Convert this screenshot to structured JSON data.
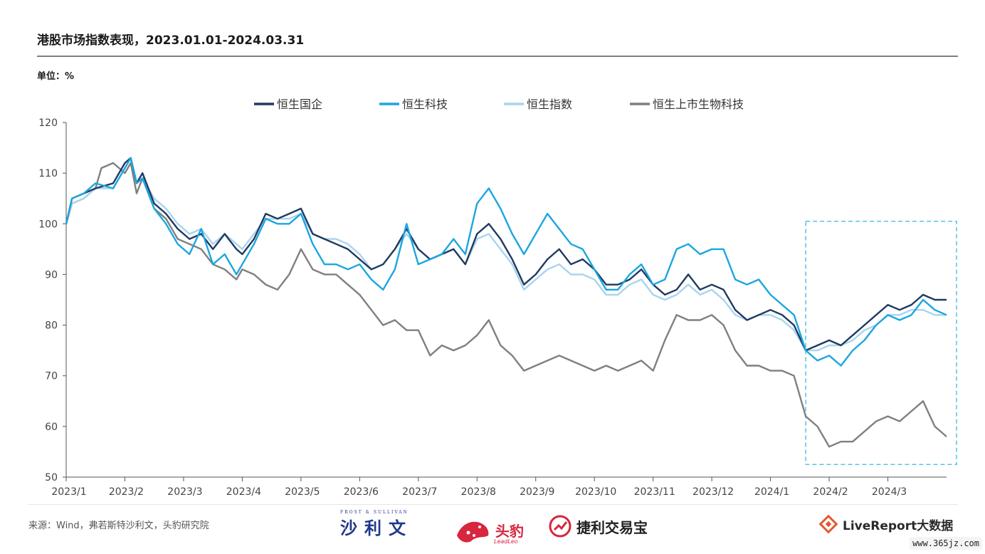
{
  "title": "港股市场指数表现，2023.01.01-2024.03.31",
  "unit_label": "单位：%",
  "source": "来源：Wind，弗若斯特沙利文，头豹研究院",
  "logos": {
    "frost": "沙利文",
    "frost_sub": "FROST & SULLIVAN",
    "leadleo": "头豹",
    "leadleo_sub": "LeadLeo",
    "jieli": "捷利交易宝",
    "livereport": "LiveReport大数据"
  },
  "watermark": "www.365jz.com",
  "colors": {
    "hscei": "#1f3a60",
    "hstech": "#1aa6e0",
    "hsi": "#a9d4ee",
    "biotech": "#7f7f7f",
    "highlight": "#3bb8e0"
  },
  "chart_data": {
    "type": "line",
    "title": "港股市场指数表现，2023.01.01-2024.03.31",
    "ylabel": "单位：%",
    "ylim": [
      50,
      120
    ],
    "yticks": [
      50,
      60,
      70,
      80,
      90,
      100,
      110,
      120
    ],
    "xlim": [
      0,
      15
    ],
    "xticks": [
      "2023/1",
      "2023/2",
      "2023/3",
      "2023/4",
      "2023/5",
      "2023/6",
      "2023/7",
      "2023/8",
      "2023/9",
      "2023/10",
      "2023/11",
      "2023/12",
      "2024/1",
      "2024/2",
      "2024/3"
    ],
    "legend_position": "top",
    "grid": false,
    "highlight_box": {
      "x_start": 12.6,
      "x_end": 15,
      "y_start": 52.5,
      "y_end": 100.5
    },
    "series": [
      {
        "name": "恒生国企",
        "color_key": "hscei",
        "points": [
          [
            0,
            100
          ],
          [
            0.1,
            105
          ],
          [
            0.3,
            106
          ],
          [
            0.5,
            107
          ],
          [
            0.8,
            108
          ],
          [
            1.0,
            112
          ],
          [
            1.1,
            113
          ],
          [
            1.2,
            108
          ],
          [
            1.3,
            110
          ],
          [
            1.5,
            104
          ],
          [
            1.7,
            102
          ],
          [
            1.9,
            99
          ],
          [
            2.1,
            97
          ],
          [
            2.3,
            98
          ],
          [
            2.5,
            95
          ],
          [
            2.7,
            98
          ],
          [
            2.9,
            95
          ],
          [
            3.0,
            94
          ],
          [
            3.2,
            97
          ],
          [
            3.4,
            102
          ],
          [
            3.6,
            101
          ],
          [
            3.8,
            102
          ],
          [
            4.0,
            103
          ],
          [
            4.2,
            98
          ],
          [
            4.4,
            97
          ],
          [
            4.6,
            96
          ],
          [
            4.8,
            95
          ],
          [
            5.0,
            93
          ],
          [
            5.2,
            91
          ],
          [
            5.4,
            92
          ],
          [
            5.6,
            95
          ],
          [
            5.8,
            99
          ],
          [
            6.0,
            95
          ],
          [
            6.2,
            93
          ],
          [
            6.4,
            94
          ],
          [
            6.6,
            95
          ],
          [
            6.8,
            92
          ],
          [
            7.0,
            98
          ],
          [
            7.2,
            100
          ],
          [
            7.4,
            97
          ],
          [
            7.6,
            93
          ],
          [
            7.8,
            88
          ],
          [
            8.0,
            90
          ],
          [
            8.2,
            93
          ],
          [
            8.4,
            95
          ],
          [
            8.6,
            92
          ],
          [
            8.8,
            93
          ],
          [
            9.0,
            91
          ],
          [
            9.2,
            88
          ],
          [
            9.4,
            88
          ],
          [
            9.6,
            89
          ],
          [
            9.8,
            91
          ],
          [
            10.0,
            88
          ],
          [
            10.2,
            86
          ],
          [
            10.4,
            87
          ],
          [
            10.6,
            90
          ],
          [
            10.8,
            87
          ],
          [
            11.0,
            88
          ],
          [
            11.2,
            87
          ],
          [
            11.4,
            83
          ],
          [
            11.6,
            81
          ],
          [
            11.8,
            82
          ],
          [
            12.0,
            83
          ],
          [
            12.2,
            82
          ],
          [
            12.4,
            80
          ],
          [
            12.6,
            75
          ],
          [
            12.8,
            76
          ],
          [
            13.0,
            77
          ],
          [
            13.2,
            76
          ],
          [
            13.4,
            78
          ],
          [
            13.6,
            80
          ],
          [
            13.8,
            82
          ],
          [
            14.0,
            84
          ],
          [
            14.2,
            83
          ],
          [
            14.4,
            84
          ],
          [
            14.6,
            86
          ],
          [
            14.8,
            85
          ],
          [
            15.0,
            85
          ]
        ]
      },
      {
        "name": "恒生科技",
        "color_key": "hstech",
        "points": [
          [
            0,
            100
          ],
          [
            0.1,
            105
          ],
          [
            0.3,
            106
          ],
          [
            0.5,
            108
          ],
          [
            0.8,
            107
          ],
          [
            1.0,
            111
          ],
          [
            1.1,
            113
          ],
          [
            1.2,
            108
          ],
          [
            1.3,
            109
          ],
          [
            1.5,
            103
          ],
          [
            1.7,
            100
          ],
          [
            1.9,
            96
          ],
          [
            2.1,
            94
          ],
          [
            2.3,
            99
          ],
          [
            2.5,
            92
          ],
          [
            2.7,
            94
          ],
          [
            2.9,
            90
          ],
          [
            3.0,
            92
          ],
          [
            3.2,
            96
          ],
          [
            3.4,
            101
          ],
          [
            3.6,
            100
          ],
          [
            3.8,
            100
          ],
          [
            4.0,
            102
          ],
          [
            4.2,
            96
          ],
          [
            4.4,
            92
          ],
          [
            4.6,
            92
          ],
          [
            4.8,
            91
          ],
          [
            5.0,
            92
          ],
          [
            5.2,
            89
          ],
          [
            5.4,
            87
          ],
          [
            5.6,
            91
          ],
          [
            5.8,
            100
          ],
          [
            6.0,
            92
          ],
          [
            6.2,
            93
          ],
          [
            6.4,
            94
          ],
          [
            6.6,
            97
          ],
          [
            6.8,
            94
          ],
          [
            7.0,
            104
          ],
          [
            7.2,
            107
          ],
          [
            7.4,
            103
          ],
          [
            7.6,
            98
          ],
          [
            7.8,
            94
          ],
          [
            8.0,
            98
          ],
          [
            8.2,
            102
          ],
          [
            8.4,
            99
          ],
          [
            8.6,
            96
          ],
          [
            8.8,
            95
          ],
          [
            9.0,
            91
          ],
          [
            9.2,
            87
          ],
          [
            9.4,
            87
          ],
          [
            9.6,
            90
          ],
          [
            9.8,
            92
          ],
          [
            10.0,
            88
          ],
          [
            10.2,
            89
          ],
          [
            10.4,
            95
          ],
          [
            10.6,
            96
          ],
          [
            10.8,
            94
          ],
          [
            11.0,
            95
          ],
          [
            11.2,
            95
          ],
          [
            11.4,
            89
          ],
          [
            11.6,
            88
          ],
          [
            11.8,
            89
          ],
          [
            12.0,
            86
          ],
          [
            12.2,
            84
          ],
          [
            12.4,
            82
          ],
          [
            12.6,
            75
          ],
          [
            12.8,
            73
          ],
          [
            13.0,
            74
          ],
          [
            13.2,
            72
          ],
          [
            13.4,
            75
          ],
          [
            13.6,
            77
          ],
          [
            13.8,
            80
          ],
          [
            14.0,
            82
          ],
          [
            14.2,
            81
          ],
          [
            14.4,
            82
          ],
          [
            14.6,
            85
          ],
          [
            14.8,
            83
          ],
          [
            15.0,
            82
          ]
        ]
      },
      {
        "name": "恒生指数",
        "color_key": "hsi",
        "points": [
          [
            0,
            100
          ],
          [
            0.1,
            104
          ],
          [
            0.3,
            105
          ],
          [
            0.5,
            107
          ],
          [
            0.8,
            107
          ],
          [
            1.0,
            111
          ],
          [
            1.1,
            113
          ],
          [
            1.2,
            108
          ],
          [
            1.3,
            109
          ],
          [
            1.5,
            105
          ],
          [
            1.7,
            103
          ],
          [
            1.9,
            100
          ],
          [
            2.1,
            98
          ],
          [
            2.3,
            99
          ],
          [
            2.5,
            96
          ],
          [
            2.7,
            98
          ],
          [
            2.9,
            96
          ],
          [
            3.0,
            95
          ],
          [
            3.2,
            98
          ],
          [
            3.4,
            101
          ],
          [
            3.6,
            101
          ],
          [
            3.8,
            101
          ],
          [
            4.0,
            102
          ],
          [
            4.2,
            98
          ],
          [
            4.4,
            97
          ],
          [
            4.6,
            97
          ],
          [
            4.8,
            96
          ],
          [
            5.0,
            94
          ],
          [
            5.2,
            91
          ],
          [
            5.4,
            92
          ],
          [
            5.6,
            95
          ],
          [
            5.8,
            98
          ],
          [
            6.0,
            95
          ],
          [
            6.2,
            93
          ],
          [
            6.4,
            94
          ],
          [
            6.6,
            95
          ],
          [
            6.8,
            92
          ],
          [
            7.0,
            97
          ],
          [
            7.2,
            98
          ],
          [
            7.4,
            95
          ],
          [
            7.6,
            92
          ],
          [
            7.8,
            87
          ],
          [
            8.0,
            89
          ],
          [
            8.2,
            91
          ],
          [
            8.4,
            92
          ],
          [
            8.6,
            90
          ],
          [
            8.8,
            90
          ],
          [
            9.0,
            89
          ],
          [
            9.2,
            86
          ],
          [
            9.4,
            86
          ],
          [
            9.6,
            88
          ],
          [
            9.8,
            89
          ],
          [
            10.0,
            86
          ],
          [
            10.2,
            85
          ],
          [
            10.4,
            86
          ],
          [
            10.6,
            88
          ],
          [
            10.8,
            86
          ],
          [
            11.0,
            87
          ],
          [
            11.2,
            85
          ],
          [
            11.4,
            82
          ],
          [
            11.6,
            81
          ],
          [
            11.8,
            82
          ],
          [
            12.0,
            82
          ],
          [
            12.2,
            81
          ],
          [
            12.4,
            79
          ],
          [
            12.6,
            75
          ],
          [
            12.8,
            75
          ],
          [
            13.0,
            76
          ],
          [
            13.2,
            76
          ],
          [
            13.4,
            77
          ],
          [
            13.6,
            79
          ],
          [
            13.8,
            80
          ],
          [
            14.0,
            82
          ],
          [
            14.2,
            82
          ],
          [
            14.4,
            83
          ],
          [
            14.6,
            83
          ],
          [
            14.8,
            82
          ],
          [
            15.0,
            82
          ]
        ]
      },
      {
        "name": "恒生上市生物科技",
        "color_key": "biotech",
        "points": [
          [
            0,
            100
          ],
          [
            0.1,
            104
          ],
          [
            0.3,
            105
          ],
          [
            0.5,
            107
          ],
          [
            0.6,
            111
          ],
          [
            0.8,
            112
          ],
          [
            1.0,
            110
          ],
          [
            1.1,
            112
          ],
          [
            1.2,
            106
          ],
          [
            1.3,
            109
          ],
          [
            1.5,
            103
          ],
          [
            1.7,
            101
          ],
          [
            1.9,
            97
          ],
          [
            2.1,
            96
          ],
          [
            2.3,
            95
          ],
          [
            2.5,
            92
          ],
          [
            2.7,
            91
          ],
          [
            2.9,
            89
          ],
          [
            3.0,
            91
          ],
          [
            3.2,
            90
          ],
          [
            3.4,
            88
          ],
          [
            3.6,
            87
          ],
          [
            3.8,
            90
          ],
          [
            4.0,
            95
          ],
          [
            4.2,
            91
          ],
          [
            4.4,
            90
          ],
          [
            4.6,
            90
          ],
          [
            4.8,
            88
          ],
          [
            5.0,
            86
          ],
          [
            5.2,
            83
          ],
          [
            5.4,
            80
          ],
          [
            5.6,
            81
          ],
          [
            5.8,
            79
          ],
          [
            6.0,
            79
          ],
          [
            6.2,
            74
          ],
          [
            6.4,
            76
          ],
          [
            6.6,
            75
          ],
          [
            6.8,
            76
          ],
          [
            7.0,
            78
          ],
          [
            7.2,
            81
          ],
          [
            7.4,
            76
          ],
          [
            7.6,
            74
          ],
          [
            7.8,
            71
          ],
          [
            8.0,
            72
          ],
          [
            8.2,
            73
          ],
          [
            8.4,
            74
          ],
          [
            8.6,
            73
          ],
          [
            8.8,
            72
          ],
          [
            9.0,
            71
          ],
          [
            9.2,
            72
          ],
          [
            9.4,
            71
          ],
          [
            9.6,
            72
          ],
          [
            9.8,
            73
          ],
          [
            10.0,
            71
          ],
          [
            10.2,
            77
          ],
          [
            10.4,
            82
          ],
          [
            10.6,
            81
          ],
          [
            10.8,
            81
          ],
          [
            11.0,
            82
          ],
          [
            11.2,
            80
          ],
          [
            11.4,
            75
          ],
          [
            11.6,
            72
          ],
          [
            11.8,
            72
          ],
          [
            12.0,
            71
          ],
          [
            12.2,
            71
          ],
          [
            12.4,
            70
          ],
          [
            12.6,
            62
          ],
          [
            12.8,
            60
          ],
          [
            13.0,
            56
          ],
          [
            13.2,
            57
          ],
          [
            13.4,
            57
          ],
          [
            13.6,
            59
          ],
          [
            13.8,
            61
          ],
          [
            14.0,
            62
          ],
          [
            14.2,
            61
          ],
          [
            14.4,
            63
          ],
          [
            14.6,
            65
          ],
          [
            14.8,
            60
          ],
          [
            15.0,
            58
          ]
        ]
      }
    ]
  }
}
